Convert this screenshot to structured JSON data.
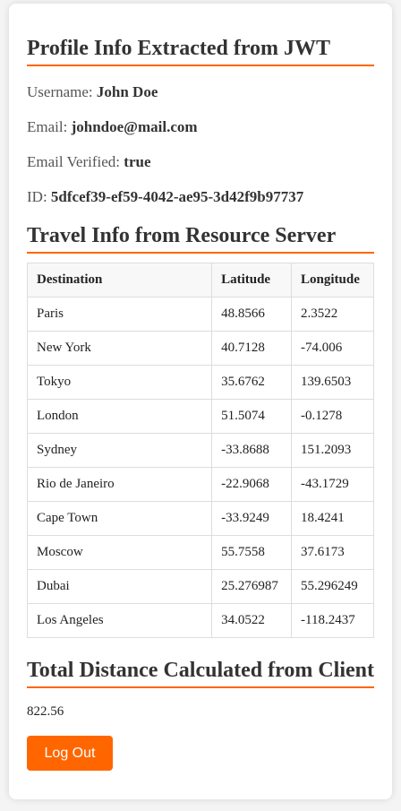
{
  "profile": {
    "heading": "Profile Info Extracted from JWT",
    "username_label": "Username: ",
    "username": "John Doe",
    "email_label": "Email: ",
    "email": "johndoe@mail.com",
    "verified_label": "Email Verified: ",
    "verified": "true",
    "id_label": "ID: ",
    "id": "5dfcef39-ef59-4042-ae95-3d42f9b97737"
  },
  "travel": {
    "heading": "Travel Info from Resource Server",
    "columns": [
      "Destination",
      "Latitude",
      "Longitude"
    ],
    "rows": [
      [
        "Paris",
        "48.8566",
        "2.3522"
      ],
      [
        "New York",
        "40.7128",
        "-74.006"
      ],
      [
        "Tokyo",
        "35.6762",
        "139.6503"
      ],
      [
        "London",
        "51.5074",
        "-0.1278"
      ],
      [
        "Sydney",
        "-33.8688",
        "151.2093"
      ],
      [
        "Rio de Janeiro",
        "-22.9068",
        "-43.1729"
      ],
      [
        "Cape Town",
        "-33.9249",
        "18.4241"
      ],
      [
        "Moscow",
        "55.7558",
        "37.6173"
      ],
      [
        "Dubai",
        "25.276987",
        "55.296249"
      ],
      [
        "Los Angeles",
        "34.0522",
        "-118.2437"
      ]
    ]
  },
  "distance": {
    "heading": "Total Distance Calculated from Client",
    "value": "822.56"
  },
  "actions": {
    "logout_label": "Log Out"
  },
  "colors": {
    "accent": "#ff6600",
    "text": "#333333",
    "label": "#555555"
  }
}
